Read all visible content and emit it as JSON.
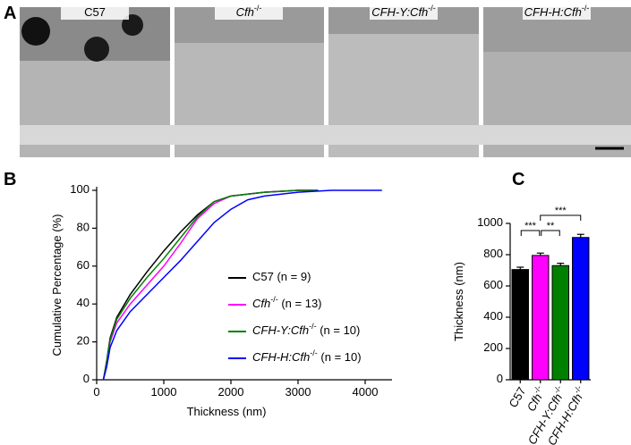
{
  "panel_labels": [
    "A",
    "B",
    "C"
  ],
  "micrographs": {
    "labels": [
      "C57",
      "Cfh-/-",
      "CFH-Y:Cfh-/-",
      "CFH-H:Cfh-/-"
    ]
  },
  "chart_data": [
    {
      "type": "line",
      "xlabel": "Thickness (nm)",
      "ylabel": "Cumulative Percentage (%)",
      "xlim": [
        0,
        4400
      ],
      "ylim": [
        0,
        100
      ],
      "xticks": [
        0,
        1000,
        2000,
        3000,
        4000
      ],
      "yticks": [
        0,
        20,
        40,
        60,
        80,
        100
      ],
      "legend": "lower right",
      "series": [
        {
          "name": "C57 (n = 9)",
          "color": "#000000",
          "x": [
            100,
            150,
            200,
            300,
            500,
            750,
            1000,
            1250,
            1500,
            1750,
            2000,
            2500,
            3000,
            3300
          ],
          "values": [
            0,
            10,
            22,
            33,
            45,
            57,
            68,
            78,
            87,
            94,
            97,
            99,
            100,
            100
          ]
        },
        {
          "name": "Cfh-/- (n = 13)",
          "color": "#ff00ff",
          "x": [
            100,
            150,
            200,
            300,
            500,
            750,
            1000,
            1250,
            1500,
            1750,
            2000,
            2500,
            3000,
            3300
          ],
          "values": [
            0,
            8,
            20,
            30,
            40,
            50,
            60,
            72,
            85,
            93,
            97,
            99,
            100,
            100
          ]
        },
        {
          "name": "CFH-Y:Cfh-/- (n = 10)",
          "color": "#008000",
          "x": [
            100,
            150,
            200,
            300,
            500,
            750,
            1000,
            1250,
            1500,
            1750,
            2000,
            2500,
            3000,
            3300
          ],
          "values": [
            0,
            9,
            21,
            32,
            43,
            54,
            64,
            75,
            86,
            94,
            97,
            99,
            100,
            100
          ]
        },
        {
          "name": "CFH-H:Cfh-/- (n = 10)",
          "color": "#0000ff",
          "x": [
            100,
            150,
            200,
            300,
            500,
            750,
            1000,
            1250,
            1500,
            1750,
            2000,
            2250,
            2500,
            3000,
            3500,
            4250
          ],
          "values": [
            0,
            7,
            17,
            26,
            36,
            45,
            54,
            63,
            73,
            83,
            90,
            95,
            97,
            99,
            100,
            100
          ]
        }
      ]
    },
    {
      "type": "bar",
      "ylabel": "Thickness (nm)",
      "categories": [
        "C57",
        "Cfh-/-",
        "CFH-Y:Cfh-/-",
        "CFH-H:Cfh-/-"
      ],
      "values": [
        705,
        795,
        730,
        910
      ],
      "errors": [
        15,
        15,
        15,
        20
      ],
      "colors": [
        "#000000",
        "#ff00ff",
        "#008000",
        "#0000ff"
      ],
      "ylim": [
        0,
        1000
      ],
      "yticks": [
        0,
        200,
        400,
        600,
        800,
        1000
      ],
      "annotations": [
        {
          "text": "***",
          "between": [
            "C57",
            "Cfh-/-"
          ]
        },
        {
          "text": "**",
          "between": [
            "Cfh-/-",
            "CFH-Y:Cfh-/-"
          ]
        },
        {
          "text": "***",
          "between": [
            "Cfh-/-",
            "CFH-H:Cfh-/-"
          ]
        }
      ]
    }
  ]
}
